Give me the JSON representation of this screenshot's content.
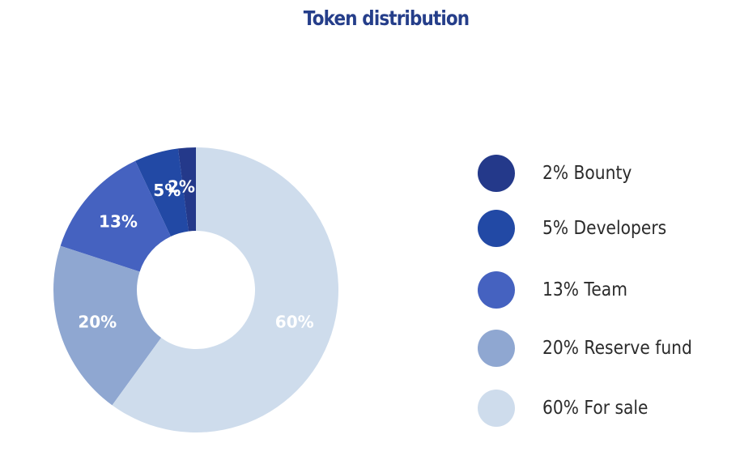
{
  "chart_data": {
    "type": "pie",
    "title": "Token distribution",
    "slices": [
      {
        "label": "2%",
        "value": 2,
        "legend": "2% Bounty",
        "color": "#24398a"
      },
      {
        "label": "5%",
        "value": 5,
        "legend": "5% Developers",
        "color": "#2249a5"
      },
      {
        "label": "13%",
        "value": 13,
        "legend": "13% Team",
        "color": "#4562c0"
      },
      {
        "label": "20%",
        "value": 20,
        "legend": "20% Reserve fund",
        "color": "#8fa7d1"
      },
      {
        "label": "60%",
        "value": 60,
        "legend": "60% For sale",
        "color": "#cedcec"
      }
    ],
    "legend_position": "right"
  }
}
